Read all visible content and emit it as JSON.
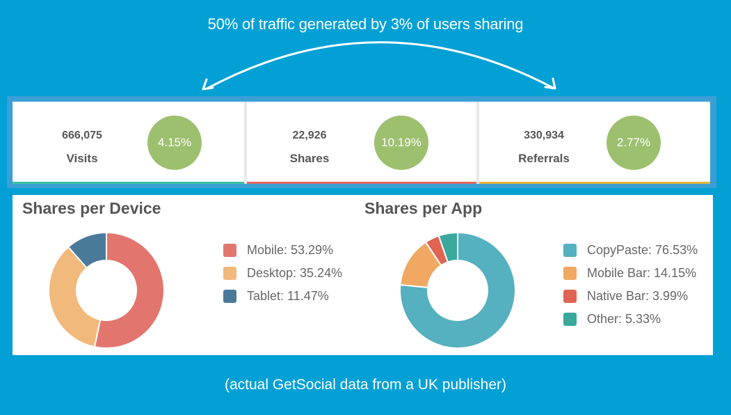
{
  "headline": "50% of traffic generated by 3% of users sharing",
  "caption": "(actual GetSocial data from a UK publisher)",
  "colors": {
    "background": "#02a0d5",
    "frame": "#3b9ed4",
    "rate_circle": "#9dc06f",
    "visits_bar": "#3cc1a0",
    "shares_bar": "#e0675e",
    "referrals_bar": "#e8b53a"
  },
  "stats": [
    {
      "value": "666,075",
      "label": "Visits",
      "rate": "4.15%"
    },
    {
      "value": "22,926",
      "label": "Shares",
      "rate": "10.19%"
    },
    {
      "value": "330,934",
      "label": "Referrals",
      "rate": "2.77%"
    }
  ],
  "device_chart": {
    "title": "Shares per Device",
    "legend": [
      {
        "label": "Mobile: 53.29%",
        "color": "#e2766e"
      },
      {
        "label": "Desktop: 35.24%",
        "color": "#f2b97c"
      },
      {
        "label": "Tablet: 11.47%",
        "color": "#4a7a9a"
      }
    ]
  },
  "app_chart": {
    "title": "Shares per App",
    "legend": [
      {
        "label": "CopyPaste: 76.53%",
        "color": "#55b0c0"
      },
      {
        "label": "Mobile Bar: 14.15%",
        "color": "#f0a862"
      },
      {
        "label": "Native Bar: 3.99%",
        "color": "#df6454"
      },
      {
        "label": "Other: 5.33%",
        "color": "#3aa89c"
      }
    ]
  },
  "chart_data": [
    {
      "type": "pie",
      "title": "Shares per Device",
      "categories": [
        "Mobile",
        "Desktop",
        "Tablet"
      ],
      "values": [
        53.29,
        35.24,
        11.47
      ],
      "colors": [
        "#e2766e",
        "#f2b97c",
        "#4a7a9a"
      ],
      "donut": true,
      "legend_position": "right"
    },
    {
      "type": "pie",
      "title": "Shares per App",
      "categories": [
        "CopyPaste",
        "Mobile Bar",
        "Native Bar",
        "Other"
      ],
      "values": [
        76.53,
        14.15,
        3.99,
        5.33
      ],
      "colors": [
        "#55b0c0",
        "#f0a862",
        "#df6454",
        "#3aa89c"
      ],
      "donut": true,
      "legend_position": "right"
    }
  ]
}
